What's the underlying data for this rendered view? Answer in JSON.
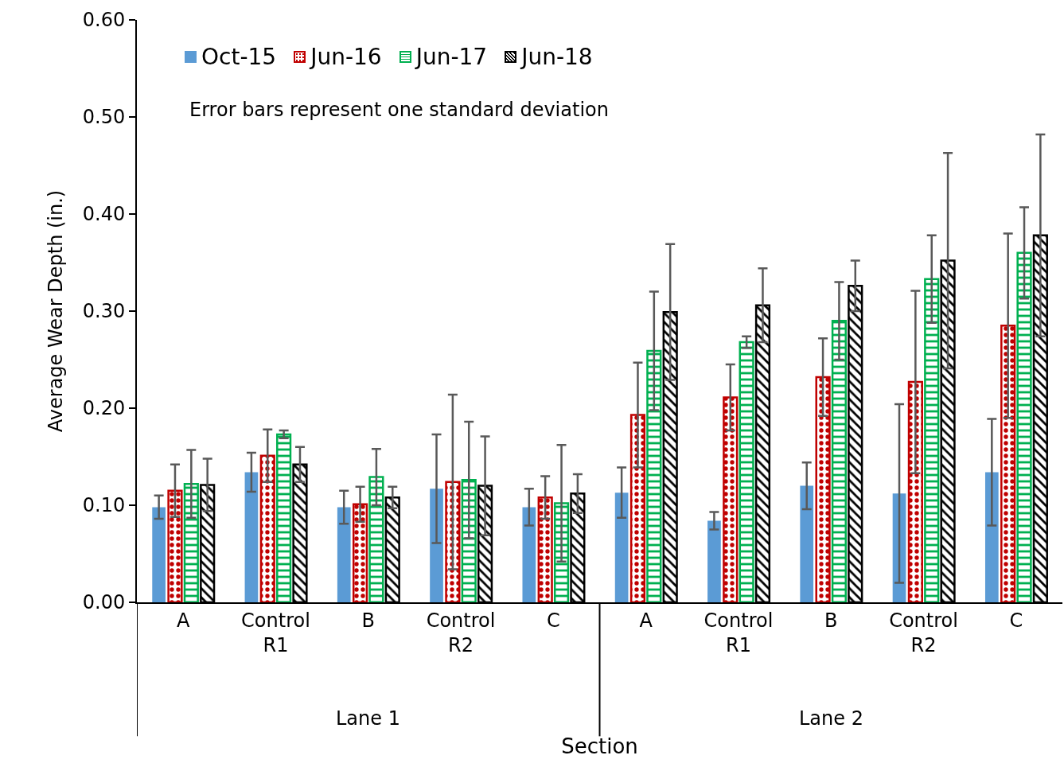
{
  "chart_data": {
    "type": "bar",
    "xlabel": "Section",
    "ylabel": "Average Wear Depth (in.)",
    "categories": [
      "A",
      "Control\nR1",
      "B",
      "Control\nR2",
      "C",
      "A",
      "Control\nR1",
      "B",
      "Control\nR2",
      "C"
    ],
    "series": [
      {
        "name": "Oct-15",
        "color": "#5b9bd5",
        "values": [
          0.098,
          0.134,
          0.098,
          0.117,
          0.098,
          0.113,
          0.084,
          0.12,
          0.112,
          0.134
        ],
        "errors": [
          0.012,
          0.02,
          0.017,
          0.056,
          0.019,
          0.026,
          0.009,
          0.024,
          0.092,
          0.055
        ]
      },
      {
        "name": "Jun-16",
        "color": "#c00000",
        "values": [
          0.115,
          0.151,
          0.101,
          0.124,
          0.108,
          0.193,
          0.211,
          0.232,
          0.227,
          0.285
        ],
        "errors": [
          0.027,
          0.027,
          0.018,
          0.09,
          0.022,
          0.054,
          0.034,
          0.04,
          0.094,
          0.095
        ]
      },
      {
        "name": "Jun-17",
        "color": "#00b050",
        "values": [
          0.122,
          0.173,
          0.129,
          0.126,
          0.102,
          0.259,
          0.268,
          0.29,
          0.333,
          0.36
        ],
        "errors": [
          0.035,
          0.004,
          0.029,
          0.06,
          0.06,
          0.061,
          0.006,
          0.04,
          0.045,
          0.047
        ]
      },
      {
        "name": "Jun-18",
        "color": "#000000",
        "values": [
          0.121,
          0.142,
          0.108,
          0.12,
          0.112,
          0.299,
          0.306,
          0.326,
          0.352,
          0.378
        ],
        "errors": [
          0.027,
          0.018,
          0.011,
          0.051,
          0.02,
          0.07,
          0.038,
          0.026,
          0.111,
          0.104
        ]
      }
    ],
    "ylim": [
      0,
      0.6
    ],
    "yticks": [
      {
        "value": 0,
        "label": "0.00"
      },
      {
        "value": 0.1,
        "label": "0.10"
      },
      {
        "value": 0.2,
        "label": "0.20"
      },
      {
        "value": 0.3,
        "label": "0.30"
      },
      {
        "value": 0.4,
        "label": "0.40"
      },
      {
        "value": 0.5,
        "label": "0.50"
      },
      {
        "value": 0.6,
        "label": "0.60"
      }
    ],
    "grid": false,
    "legend": "top left",
    "annotations": [
      "Error bars represent one standard deviation",
      "Lane 1",
      "Lane 2"
    ]
  }
}
